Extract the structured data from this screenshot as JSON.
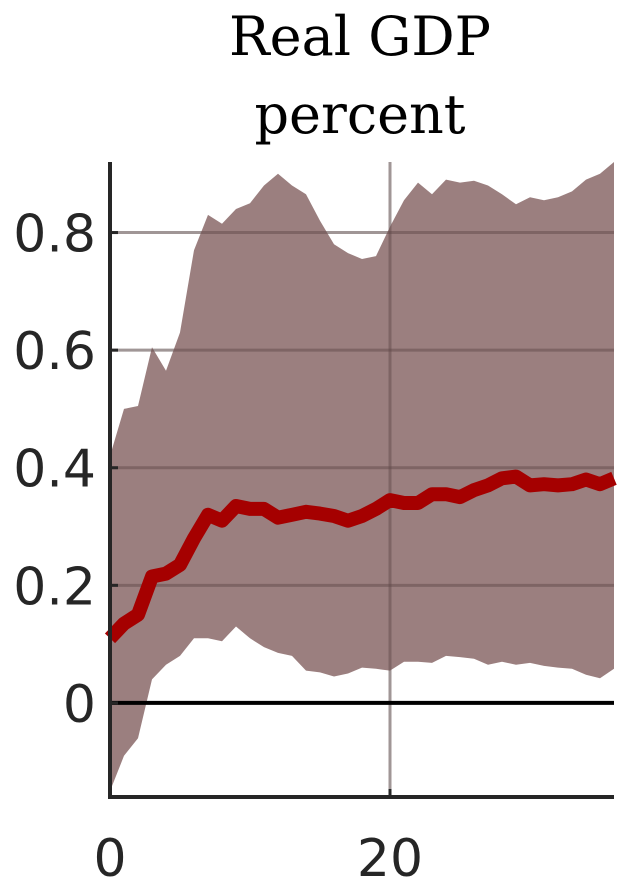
{
  "chart_data": {
    "type": "area",
    "title": "Real GDP",
    "subtitle": "percent",
    "xlabel": "",
    "ylabel": "",
    "xlim": [
      0,
      36
    ],
    "ylim": [
      -0.16,
      0.92
    ],
    "xticks": [
      0,
      20
    ],
    "yticks": [
      0,
      0.2,
      0.4,
      0.6,
      0.8
    ],
    "ytick_labels": [
      "0",
      "0.2",
      "0.4",
      "0.6",
      "0.8"
    ],
    "xtick_labels": [
      "0",
      "20"
    ],
    "grid": true,
    "zero_line": true,
    "colors": {
      "median": "#a50000",
      "band": "#9b7f7f",
      "grid": "#d9d9d9",
      "zero": "#000000"
    },
    "x": [
      0,
      1,
      2,
      3,
      4,
      5,
      6,
      7,
      8,
      9,
      10,
      11,
      12,
      13,
      14,
      15,
      16,
      17,
      18,
      19,
      20,
      21,
      22,
      23,
      24,
      25,
      26,
      27,
      28,
      29,
      30,
      31,
      32,
      33,
      34,
      35,
      36
    ],
    "series": [
      {
        "values": [
          0.11,
          0.135,
          0.15,
          0.215,
          0.22,
          0.235,
          0.28,
          0.32,
          0.31,
          0.335,
          0.33,
          0.33,
          0.315,
          0.32,
          0.325,
          0.322,
          0.318,
          0.31,
          0.318,
          0.33,
          0.345,
          0.34,
          0.34,
          0.355,
          0.355,
          0.35,
          0.362,
          0.37,
          0.382,
          0.385,
          0.37,
          0.372,
          0.37,
          0.372,
          0.38,
          0.372,
          0.382
        ]
      },
      {
        "values": [
          0.42,
          0.5,
          0.505,
          0.605,
          0.565,
          0.63,
          0.77,
          0.83,
          0.815,
          0.84,
          0.85,
          0.88,
          0.9,
          0.88,
          0.865,
          0.82,
          0.78,
          0.765,
          0.755,
          0.76,
          0.81,
          0.855,
          0.885,
          0.865,
          0.89,
          0.885,
          0.888,
          0.88,
          0.865,
          0.848,
          0.86,
          0.855,
          0.86,
          0.87,
          0.89,
          0.9,
          0.92
        ]
      },
      {
        "values": [
          -0.15,
          -0.09,
          -0.06,
          0.04,
          0.065,
          0.08,
          0.11,
          0.11,
          0.105,
          0.13,
          0.11,
          0.095,
          0.085,
          0.08,
          0.055,
          0.052,
          0.045,
          0.05,
          0.06,
          0.058,
          0.055,
          0.07,
          0.07,
          0.068,
          0.08,
          0.078,
          0.075,
          0.065,
          0.07,
          0.065,
          0.068,
          0.063,
          0.06,
          0.058,
          0.048,
          0.042,
          0.058
        ]
      }
    ]
  }
}
